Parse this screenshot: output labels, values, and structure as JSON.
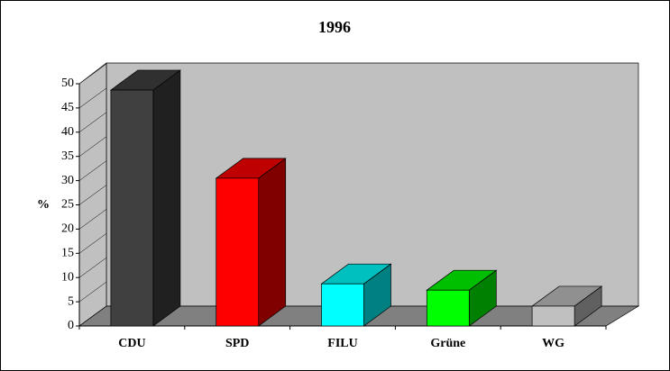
{
  "chart_data": {
    "type": "bar3d",
    "title": "1996",
    "y_label": "%",
    "categories": [
      "CDU",
      "SPD",
      "FILU",
      "Grüne",
      "WG"
    ],
    "values": [
      48.7,
      30.5,
      8.7,
      7.4,
      4.1
    ],
    "colors": [
      "#404040",
      "#ff0000",
      "#00ffff",
      "#00ff00",
      "#c0c0c0"
    ],
    "ylim": [
      0,
      50
    ],
    "yticks": [
      0,
      5,
      10,
      15,
      20,
      25,
      30,
      35,
      40,
      45,
      50
    ]
  }
}
